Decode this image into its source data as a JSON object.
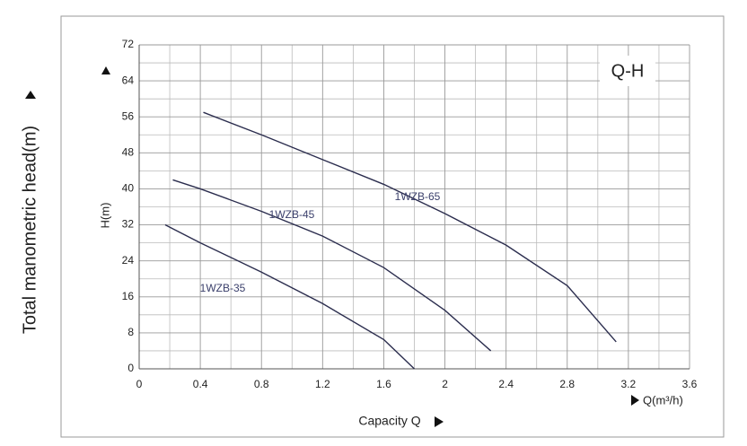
{
  "chart_data": {
    "type": "line",
    "title": "Q-H",
    "x_label": "Q(m³/h)",
    "y_label": "H(m)",
    "outer_y_label": "Total manometric head(m)",
    "outer_x_label": "Capacity Q",
    "xlim": [
      0,
      3.6
    ],
    "xticks": [
      0,
      0.4,
      0.8,
      1.2,
      1.6,
      2,
      2.4,
      2.8,
      3.2,
      3.6
    ],
    "x_minor_ticks": [
      0.2,
      0.6,
      1.0,
      1.4,
      1.8,
      2.2,
      2.6,
      3.0,
      3.4
    ],
    "ylim": [
      0,
      72
    ],
    "yticks": [
      0,
      8,
      16,
      24,
      32,
      40,
      48,
      56,
      64,
      72
    ],
    "y_minor_ticks": [
      4,
      12,
      20,
      28,
      36,
      44,
      52,
      60,
      68
    ],
    "grid": true,
    "series": [
      {
        "name": "1WZB-35",
        "color": "#2b2d4e",
        "x": [
          0.17,
          0.4,
          0.8,
          1.2,
          1.6,
          1.8
        ],
        "values": [
          32,
          28,
          21.5,
          14.5,
          6.5,
          0
        ]
      },
      {
        "name": "1WZB-45",
        "color": "#2b2d4e",
        "x": [
          0.22,
          0.4,
          0.8,
          1.2,
          1.6,
          2.0,
          2.3
        ],
        "values": [
          42,
          40,
          35,
          29.5,
          22.5,
          13,
          4
        ]
      },
      {
        "name": "1WZB-65",
        "color": "#2b2d4e",
        "x": [
          0.42,
          0.8,
          1.2,
          1.6,
          2.0,
          2.4,
          2.8,
          3.12
        ],
        "values": [
          57,
          52,
          46.5,
          41,
          34.5,
          27.5,
          18.5,
          6
        ]
      }
    ]
  }
}
